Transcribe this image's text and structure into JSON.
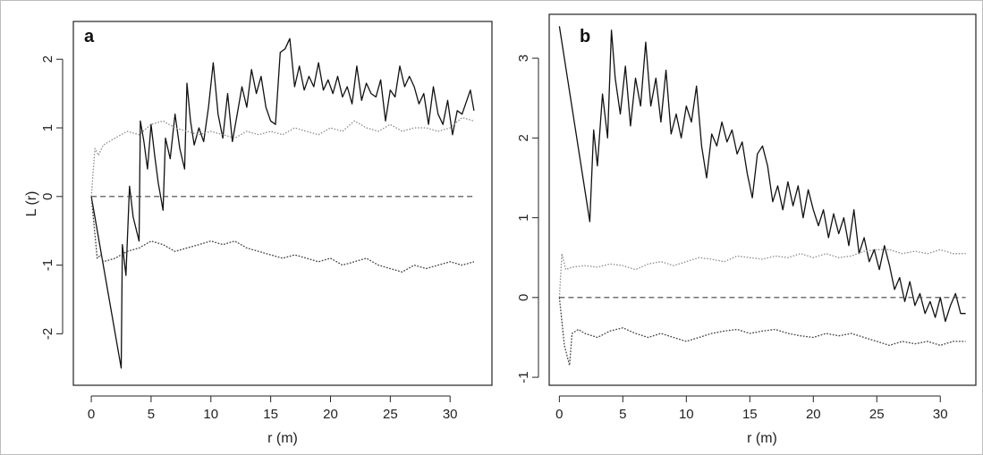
{
  "figure": {
    "panels": [
      {
        "letter": "a",
        "xlabel": "r (m)",
        "ylabel": "L (r)"
      },
      {
        "letter": "b",
        "xlabel": "r (m)",
        "ylabel": ""
      }
    ]
  },
  "chart_data": [
    {
      "type": "line",
      "title": "",
      "panel_label": "a",
      "xlabel": "r (m)",
      "ylabel": "L (r)",
      "xlim": [
        -1.5,
        33.5
      ],
      "ylim": [
        -2.75,
        2.55
      ],
      "xticks": [
        0,
        5,
        10,
        15,
        20,
        25,
        30
      ],
      "yticks": [
        -2,
        -1,
        0,
        1,
        2
      ],
      "grid": false,
      "series": [
        {
          "role": "observed",
          "style": "solid",
          "x": [
            0,
            2.5,
            2.6,
            2.9,
            3.2,
            3.5,
            4.0,
            4.1,
            4.4,
            4.7,
            5.0,
            5.3,
            5.6,
            6.0,
            6.2,
            6.6,
            7.0,
            7.4,
            7.8,
            8.0,
            8.3,
            8.6,
            9.0,
            9.4,
            9.8,
            10.2,
            10.6,
            11.0,
            11.4,
            11.8,
            12.2,
            12.6,
            13.0,
            13.4,
            13.8,
            14.2,
            14.6,
            15.0,
            15.4,
            15.8,
            16.2,
            16.6,
            17.0,
            17.4,
            17.8,
            18.2,
            18.6,
            19.0,
            19.4,
            19.8,
            20.2,
            20.6,
            21.0,
            21.4,
            21.8,
            22.2,
            22.6,
            23.0,
            23.4,
            23.8,
            24.2,
            24.6,
            25.0,
            25.4,
            25.8,
            26.2,
            26.6,
            27.0,
            27.4,
            27.8,
            28.2,
            28.6,
            29.0,
            29.4,
            29.8,
            30.2,
            30.6,
            31.0,
            31.4,
            31.7,
            32.0
          ],
          "y": [
            0,
            -2.5,
            -0.7,
            -1.15,
            0.15,
            -0.3,
            -0.65,
            1.1,
            0.8,
            0.4,
            1.05,
            0.6,
            0.2,
            -0.2,
            0.85,
            0.55,
            1.2,
            0.7,
            0.4,
            1.65,
            1.1,
            0.75,
            1.0,
            0.8,
            1.3,
            1.95,
            1.2,
            0.85,
            1.5,
            0.8,
            1.2,
            1.6,
            1.3,
            1.85,
            1.5,
            1.75,
            1.3,
            1.1,
            1.05,
            2.1,
            2.15,
            2.3,
            1.6,
            1.9,
            1.55,
            1.75,
            1.6,
            1.95,
            1.55,
            1.7,
            1.5,
            1.75,
            1.45,
            1.6,
            1.35,
            1.9,
            1.4,
            1.65,
            1.5,
            1.45,
            1.7,
            1.1,
            1.55,
            1.45,
            1.9,
            1.6,
            1.75,
            1.6,
            1.35,
            1.5,
            1.05,
            1.6,
            1.2,
            1.05,
            1.4,
            0.9,
            1.25,
            1.2,
            1.4,
            1.55,
            1.25
          ]
        },
        {
          "role": "upper_envelope",
          "style": "dotted",
          "x": [
            0,
            0.3,
            0.6,
            1.0,
            2.0,
            3.0,
            4.0,
            5.0,
            6.0,
            7.0,
            8.0,
            9.0,
            10.0,
            11.0,
            12.0,
            13.0,
            14.0,
            15.0,
            16.0,
            17.0,
            18.0,
            19.0,
            20.0,
            21.0,
            22.0,
            23.0,
            24.0,
            25.0,
            26.0,
            27.0,
            28.0,
            29.0,
            30.0,
            31.0,
            32.0
          ],
          "y": [
            0,
            0.7,
            0.6,
            0.75,
            0.85,
            0.95,
            0.9,
            1.05,
            1.1,
            1.0,
            0.95,
            0.9,
            0.95,
            0.9,
            0.85,
            0.95,
            0.9,
            0.95,
            0.9,
            1.0,
            0.95,
            0.9,
            1.0,
            0.95,
            1.1,
            1.0,
            0.95,
            1.05,
            0.95,
            1.0,
            1.0,
            0.95,
            1.0,
            1.15,
            1.1
          ]
        },
        {
          "role": "lower_envelope",
          "style": "dotted",
          "x": [
            0,
            0.5,
            0.8,
            1.0,
            2.0,
            3.0,
            4.0,
            5.0,
            6.0,
            7.0,
            8.0,
            9.0,
            10.0,
            11.0,
            12.0,
            13.0,
            14.0,
            15.0,
            16.0,
            17.0,
            18.0,
            19.0,
            20.0,
            21.0,
            22.0,
            23.0,
            24.0,
            25.0,
            26.0,
            27.0,
            28.0,
            29.0,
            30.0,
            31.0,
            32.0
          ],
          "y": [
            0,
            -0.9,
            -0.85,
            -0.95,
            -0.9,
            -0.8,
            -0.75,
            -0.65,
            -0.7,
            -0.8,
            -0.75,
            -0.7,
            -0.65,
            -0.7,
            -0.65,
            -0.75,
            -0.8,
            -0.85,
            -0.9,
            -0.85,
            -0.9,
            -0.95,
            -0.9,
            -1.0,
            -0.95,
            -0.9,
            -1.0,
            -1.05,
            -1.1,
            -1.0,
            -1.05,
            -1.0,
            -0.95,
            -1.0,
            -0.95
          ]
        },
        {
          "role": "reference",
          "style": "dashed",
          "x": [
            0,
            32
          ],
          "y": [
            0,
            0
          ]
        }
      ]
    },
    {
      "type": "line",
      "title": "",
      "panel_label": "b",
      "xlabel": "r (m)",
      "ylabel": "",
      "xlim": [
        -0.8,
        32.8
      ],
      "ylim": [
        -1.1,
        3.55
      ],
      "xticks": [
        0,
        5,
        10,
        15,
        20,
        25,
        30
      ],
      "yticks": [
        -1,
        0,
        1,
        2,
        3
      ],
      "grid": false,
      "series": [
        {
          "role": "observed",
          "style": "solid",
          "x": [
            0,
            2.4,
            2.7,
            3.0,
            3.4,
            3.8,
            4.1,
            4.4,
            4.8,
            5.2,
            5.6,
            6.0,
            6.4,
            6.8,
            7.2,
            7.6,
            8.0,
            8.4,
            8.8,
            9.2,
            9.6,
            10.0,
            10.4,
            10.8,
            11.2,
            11.6,
            12.0,
            12.4,
            12.8,
            13.2,
            13.6,
            14.0,
            14.4,
            14.8,
            15.2,
            15.6,
            16.0,
            16.4,
            16.8,
            17.2,
            17.6,
            18.0,
            18.4,
            18.8,
            19.2,
            19.6,
            20.0,
            20.4,
            20.8,
            21.2,
            21.6,
            22.0,
            22.4,
            22.8,
            23.2,
            23.6,
            24.0,
            24.4,
            24.8,
            25.2,
            25.6,
            26.0,
            26.4,
            26.8,
            27.2,
            27.6,
            28.0,
            28.4,
            28.8,
            29.2,
            29.6,
            30.0,
            30.4,
            30.8,
            31.2,
            31.6,
            32.0
          ],
          "y": [
            3.4,
            0.95,
            2.1,
            1.65,
            2.55,
            2.0,
            3.35,
            2.75,
            2.3,
            2.9,
            2.15,
            2.75,
            2.4,
            3.2,
            2.4,
            2.75,
            2.2,
            2.85,
            2.05,
            2.3,
            2.0,
            2.4,
            2.2,
            2.65,
            1.9,
            1.5,
            2.05,
            1.9,
            2.2,
            1.95,
            2.1,
            1.8,
            1.95,
            1.55,
            1.25,
            1.8,
            1.9,
            1.65,
            1.2,
            1.4,
            1.1,
            1.45,
            1.15,
            1.4,
            1.0,
            1.35,
            1.1,
            0.9,
            1.1,
            0.75,
            1.05,
            0.8,
            1.0,
            0.65,
            1.1,
            0.55,
            0.75,
            0.45,
            0.6,
            0.35,
            0.65,
            0.4,
            0.1,
            0.25,
            -0.05,
            0.2,
            -0.1,
            0.05,
            -0.2,
            -0.05,
            -0.25,
            0.0,
            -0.3,
            -0.1,
            0.05,
            -0.2,
            -0.2
          ]
        },
        {
          "role": "upper_envelope",
          "style": "dotted",
          "x": [
            0,
            0.2,
            0.5,
            1.0,
            2.0,
            3.0,
            4.0,
            5.0,
            6.0,
            7.0,
            8.0,
            9.0,
            10.0,
            11.0,
            12.0,
            13.0,
            14.0,
            15.0,
            16.0,
            17.0,
            18.0,
            19.0,
            20.0,
            21.0,
            22.0,
            23.0,
            24.0,
            25.0,
            26.0,
            27.0,
            28.0,
            29.0,
            30.0,
            31.0,
            32.0
          ],
          "y": [
            0,
            0.55,
            0.35,
            0.38,
            0.4,
            0.38,
            0.42,
            0.4,
            0.35,
            0.42,
            0.45,
            0.4,
            0.45,
            0.5,
            0.48,
            0.45,
            0.52,
            0.5,
            0.48,
            0.52,
            0.5,
            0.55,
            0.5,
            0.55,
            0.5,
            0.52,
            0.58,
            0.6,
            0.6,
            0.55,
            0.58,
            0.55,
            0.6,
            0.55,
            0.55
          ]
        },
        {
          "role": "lower_envelope",
          "style": "dotted",
          "x": [
            0,
            0.4,
            0.8,
            1.0,
            1.5,
            2.0,
            3.0,
            4.0,
            5.0,
            6.0,
            7.0,
            8.0,
            9.0,
            10.0,
            11.0,
            12.0,
            13.0,
            14.0,
            15.0,
            16.0,
            17.0,
            18.0,
            19.0,
            20.0,
            21.0,
            22.0,
            23.0,
            24.0,
            25.0,
            26.0,
            27.0,
            28.0,
            29.0,
            30.0,
            31.0,
            32.0
          ],
          "y": [
            0,
            -0.6,
            -0.85,
            -0.45,
            -0.4,
            -0.45,
            -0.5,
            -0.42,
            -0.38,
            -0.45,
            -0.5,
            -0.45,
            -0.5,
            -0.55,
            -0.5,
            -0.45,
            -0.42,
            -0.4,
            -0.45,
            -0.42,
            -0.4,
            -0.45,
            -0.48,
            -0.5,
            -0.45,
            -0.48,
            -0.45,
            -0.5,
            -0.55,
            -0.6,
            -0.55,
            -0.58,
            -0.55,
            -0.6,
            -0.55,
            -0.55
          ]
        },
        {
          "role": "reference",
          "style": "dashed",
          "x": [
            0,
            32
          ],
          "y": [
            0,
            0
          ]
        }
      ]
    }
  ]
}
